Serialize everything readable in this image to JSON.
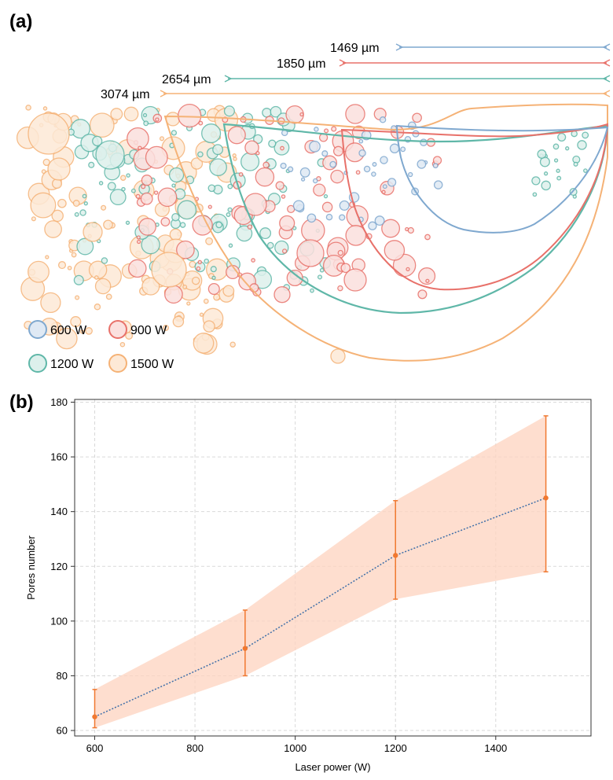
{
  "panel_a": {
    "label": "(a)",
    "widths": [
      {
        "text": "1469 µm",
        "color": "#7fa8cf"
      },
      {
        "text": "1850 µm",
        "color": "#e8716a"
      },
      {
        "text": "2654 µm",
        "color": "#5fb7a8"
      },
      {
        "text": "3074 µm",
        "color": "#f5b276"
      }
    ],
    "legend": [
      {
        "text": "600 W",
        "stroke": "#7fa8cf",
        "fill": "#dfe9f4"
      },
      {
        "text": "900 W",
        "stroke": "#e8716a",
        "fill": "#fbe0de"
      },
      {
        "text": "1200 W",
        "stroke": "#5fb7a8",
        "fill": "#ddf0ec"
      },
      {
        "text": "1500 W",
        "stroke": "#f5b276",
        "fill": "#fde9d6"
      }
    ]
  },
  "panel_b": {
    "label": "(b)"
  },
  "chart_data": {
    "type": "line",
    "title": "",
    "xlabel": "Laser power (W)",
    "ylabel": "Pores number",
    "xlim": [
      560,
      1590
    ],
    "ylim": [
      58,
      181
    ],
    "xticks": [
      600,
      800,
      1000,
      1200,
      1400
    ],
    "yticks": [
      60,
      80,
      100,
      120,
      140,
      160,
      180
    ],
    "grid": true,
    "series": [
      {
        "name": "Pores number",
        "x": [
          600,
          900,
          1200,
          1500
        ],
        "y": [
          65,
          90,
          124,
          145
        ],
        "y_lower": [
          61,
          80,
          108,
          118
        ],
        "y_upper": [
          75,
          104,
          144,
          175
        ],
        "line_color": "#3f6fa8",
        "marker_color": "#f07830",
        "band_color": "#fdd3bf"
      }
    ]
  }
}
